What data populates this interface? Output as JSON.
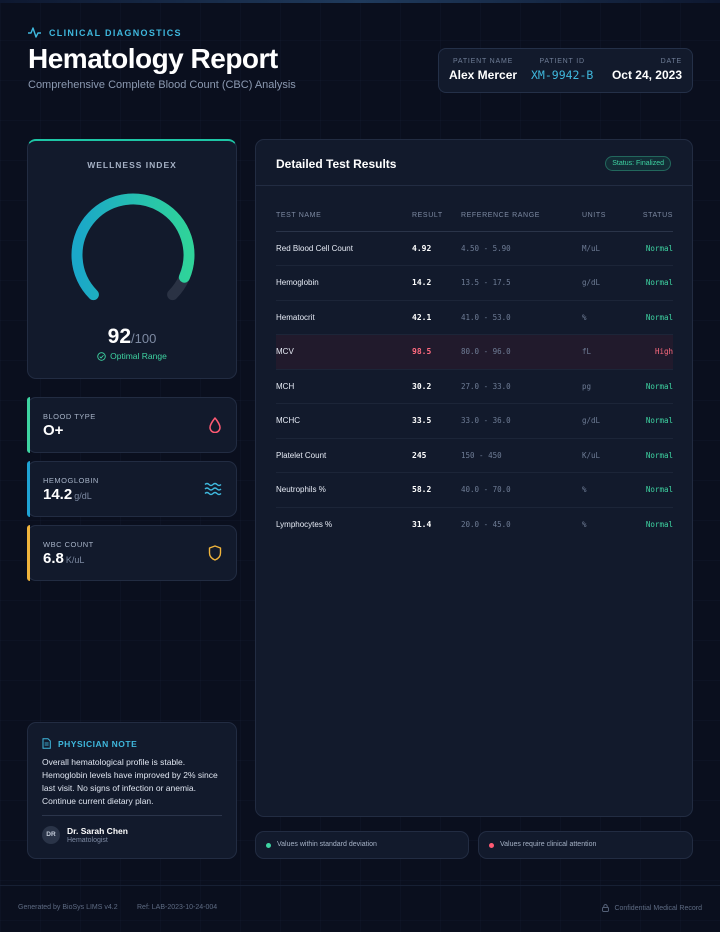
{
  "header": {
    "kicker": "CLINICAL DIAGNOSTICS",
    "title": "Hematology Report",
    "subtitle": "Comprehensive Complete Blood Count (CBC) Analysis"
  },
  "patient": {
    "name_label": "PATIENT NAME",
    "name": "Alex Mercer",
    "id_label": "PATIENT ID",
    "id": "XM-9942-B",
    "date_label": "DATE",
    "date": "Oct 24, 2023"
  },
  "wellness": {
    "label": "WELLNESS INDEX",
    "score": "92",
    "max": "/100",
    "fraction": 0.92,
    "status": "Optimal Range",
    "gradient_start": "#1aa7c9",
    "gradient_end": "#2fd39a",
    "track_color": "#2a3244"
  },
  "metrics": [
    {
      "label": "BLOOD TYPE",
      "value": "O+",
      "unit": "",
      "icon": "drop-icon",
      "color": "#ff5a73"
    },
    {
      "label": "HEMOGLOBIN",
      "value": "14.2",
      "unit": "g/dL",
      "icon": "waves-icon",
      "color": "#3fb8dd"
    },
    {
      "label": "WBC COUNT",
      "value": "6.8",
      "unit": "K/uL",
      "icon": "shield-icon",
      "color": "#f0b43c"
    }
  ],
  "note": {
    "title": "PHYSICIAN NOTE",
    "text": "Overall hematological profile is stable. Hemoglobin levels have improved by 2% since last visit. No signs of infection or anemia. Continue current dietary plan.",
    "initials": "DR",
    "doctor": "Dr. Sarah Chen",
    "role": "Hematologist"
  },
  "results": {
    "title": "Detailed Test Results",
    "status": "Status: Finalized",
    "columns": [
      "TEST NAME",
      "RESULT",
      "REFERENCE RANGE",
      "UNITS",
      "STATUS"
    ],
    "rows": [
      {
        "name": "Red Blood Cell Count",
        "result": "4.92",
        "range": "4.50 - 5.90",
        "unit": "M/uL",
        "status": "Normal"
      },
      {
        "name": "Hemoglobin",
        "result": "14.2",
        "range": "13.5 - 17.5",
        "unit": "g/dL",
        "status": "Normal"
      },
      {
        "name": "Hematocrit",
        "result": "42.1",
        "range": "41.0 - 53.0",
        "unit": "%",
        "status": "Normal"
      },
      {
        "name": "MCV",
        "result": "98.5",
        "range": "80.0 - 96.0",
        "unit": "fL",
        "status": "High"
      },
      {
        "name": "MCH",
        "result": "30.2",
        "range": "27.0 - 33.0",
        "unit": "pg",
        "status": "Normal"
      },
      {
        "name": "MCHC",
        "result": "33.5",
        "range": "33.0 - 36.0",
        "unit": "g/dL",
        "status": "Normal"
      },
      {
        "name": "Platelet Count",
        "result": "245",
        "range": "150 - 450",
        "unit": "K/uL",
        "status": "Normal"
      },
      {
        "name": "Neutrophils %",
        "result": "58.2",
        "range": "40.0 - 70.0",
        "unit": "%",
        "status": "Normal"
      },
      {
        "name": "Lymphocytes %",
        "result": "31.4",
        "range": "20.0 - 45.0",
        "unit": "%",
        "status": "Normal"
      }
    ]
  },
  "legend": [
    {
      "text": "Values within standard deviation",
      "color": "#3ed4a2"
    },
    {
      "text": "Values require clinical attention",
      "color": "#ff5a73"
    }
  ],
  "footer": {
    "generated": "Generated by BioSys LIMS v4.2",
    "ref": "Ref: LAB-2023-10-24-004",
    "confidential": "Confidential Medical Record"
  }
}
